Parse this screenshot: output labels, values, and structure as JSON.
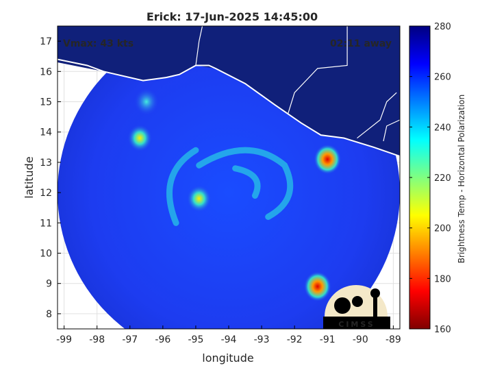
{
  "chart_data": {
    "type": "heatmap",
    "title": "Erick: 17-Jun-2025 14:45:00",
    "xlabel": "longitude",
    "ylabel": "latitude",
    "xlim": [
      -99.2,
      -88.8
    ],
    "ylim": [
      7.5,
      17.5
    ],
    "xticks": [
      -99,
      -98,
      -97,
      -96,
      -95,
      -94,
      -93,
      -92,
      -91,
      -90,
      -89
    ],
    "yticks": [
      8,
      9,
      10,
      11,
      12,
      13,
      14,
      15,
      16,
      17
    ],
    "grid": true,
    "annotation_left": "Vmax: 43 kts",
    "annotation_right": "02:11 away",
    "logo_text": "CIMSS",
    "colorbar": {
      "label": "Brightness Temp - Horizontal Polarization",
      "range": [
        160,
        280
      ],
      "ticks": [
        160,
        180,
        200,
        220,
        240,
        260,
        280
      ],
      "colormap": "jet"
    },
    "swath": {
      "center": [
        -94.0,
        12.0
      ],
      "radius_deg_lon": 5.2
    },
    "storm_center": [
      -94.3,
      12.2
    ],
    "features": [
      {
        "name": "eyewall-cold-band",
        "lon": -94.9,
        "lat": 11.8,
        "tb": 215
      },
      {
        "name": "convection-north-west",
        "lon": -96.7,
        "lat": 13.8,
        "tb": 212
      },
      {
        "name": "convection-east",
        "lon": -91.0,
        "lat": 13.1,
        "tb": 182
      },
      {
        "name": "convection-south-east",
        "lon": -91.3,
        "lat": 8.9,
        "tb": 178
      },
      {
        "name": "convection-far-north-west",
        "lon": -96.5,
        "lat": 15.0,
        "tb": 225
      }
    ],
    "colors": {
      "background_cold_ocean": "#1e3cf0",
      "land_warm": "#10207a",
      "coastline": "#ffffff",
      "frame": "#000000"
    }
  }
}
